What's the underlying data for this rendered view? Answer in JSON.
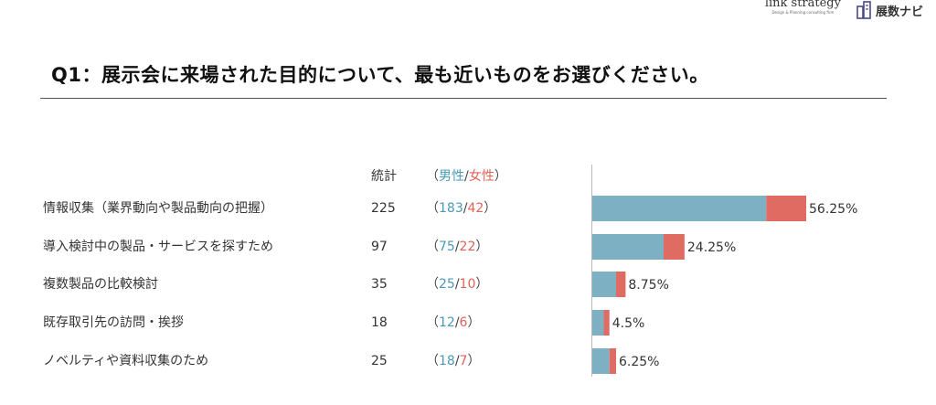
{
  "header": {
    "brand1_name": "link strategy",
    "brand1_tagline": "Design & Planning consulting firm",
    "brand2_name": "展数ナビ"
  },
  "title": "Q1：展示会に来場された目的について、最も近いものをお選びください。",
  "columns": {
    "total": "統計",
    "open": "（",
    "male": "男性",
    "slash": "/",
    "female": "女性",
    "close": "）"
  },
  "colors": {
    "male": "#7db0c2",
    "female": "#e06b62",
    "male_text": "#4a9ab6",
    "female_text": "#e06258"
  },
  "chart_data": {
    "type": "bar",
    "orientation": "horizontal",
    "stacked": true,
    "categories": [
      "情報収集（業界動向や製品動向の把握）",
      "導入検討中の製品・サービスを探すため",
      "複数製品の比較検討",
      "既存取引先の訪問・挨拶",
      "ノベルティや資料収集のため"
    ],
    "totals": [
      225,
      97,
      35,
      18,
      25
    ],
    "series": [
      {
        "name": "男性",
        "values": [
          183,
          75,
          25,
          12,
          18
        ]
      },
      {
        "name": "女性",
        "values": [
          42,
          22,
          10,
          6,
          7
        ]
      }
    ],
    "percent_labels": [
      "56.25%",
      "24.25%",
      "8.75%",
      "4.5%",
      "6.25%"
    ],
    "grid": false
  }
}
